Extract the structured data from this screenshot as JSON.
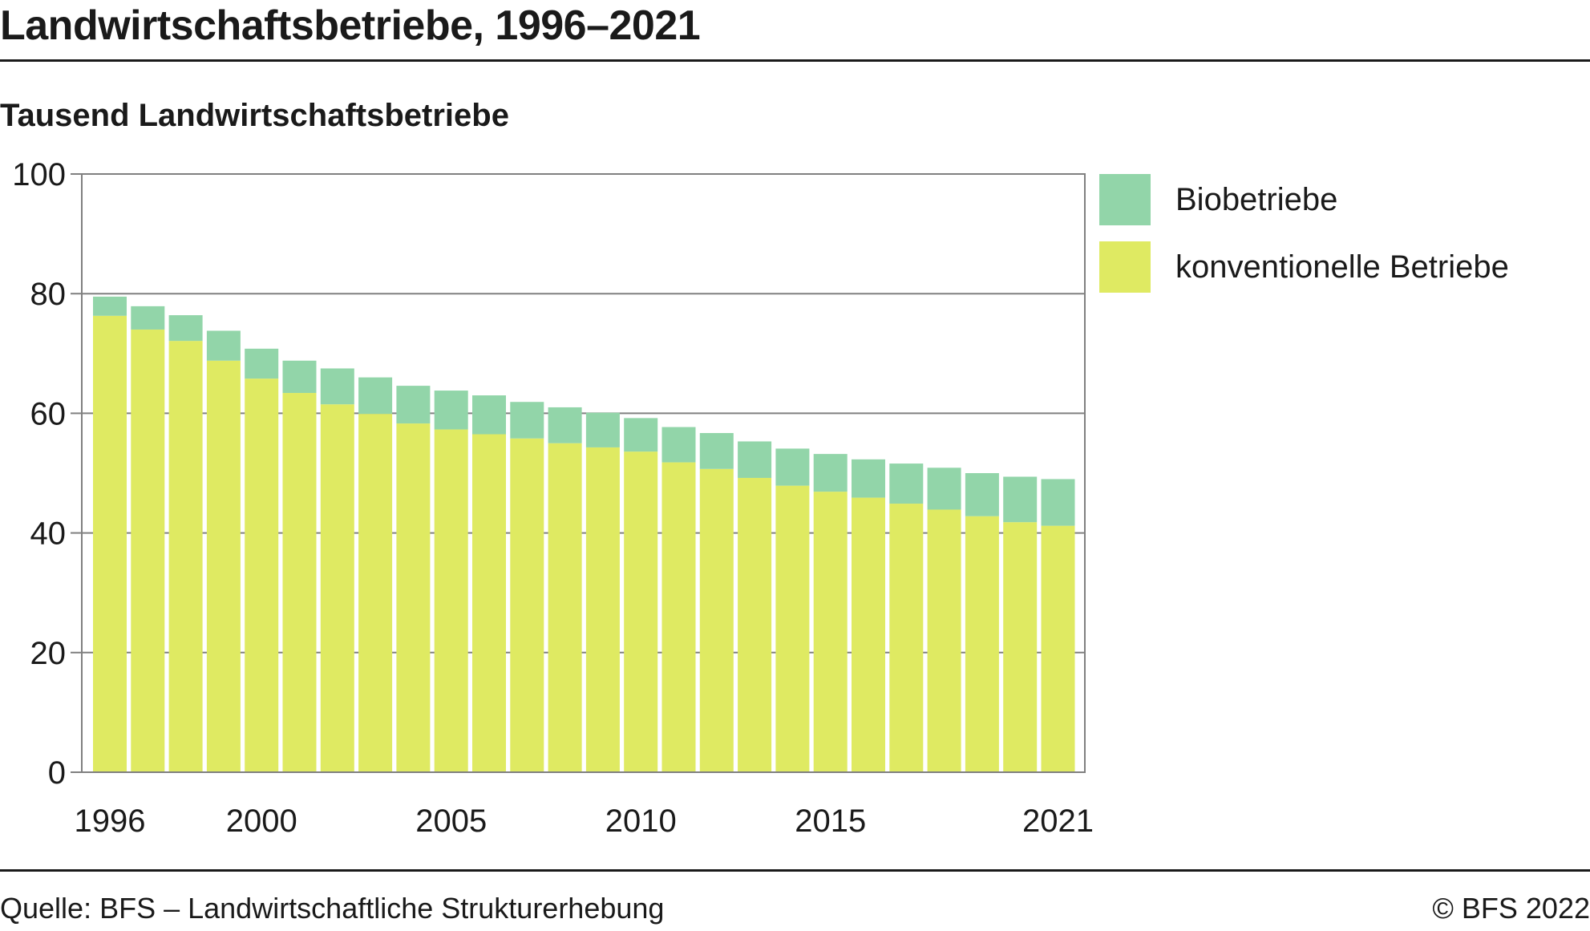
{
  "header": {
    "title": "Landwirtschaftsbetriebe, 1996–2021",
    "subtitle": "Tausend Landwirtschaftsbetriebe"
  },
  "footer": {
    "source": "Quelle: BFS – Landwirtschaftliche Strukturerhebung",
    "copyright": "© BFS 2022"
  },
  "colors": {
    "bio": "#92d5a9",
    "conventional": "#dfea62",
    "grid": "#808080",
    "text": "#1a1a1a"
  },
  "chart_data": {
    "type": "bar",
    "stacked": true,
    "title": "Landwirtschaftsbetriebe, 1996–2021",
    "ylabel": "Tausend Landwirtschaftsbetriebe",
    "xlabel": "",
    "ylim": [
      0,
      100
    ],
    "yticks": [
      0,
      20,
      40,
      60,
      80,
      100
    ],
    "grid": true,
    "legend_position": "right",
    "categories": [
      1996,
      1997,
      1998,
      1999,
      2000,
      2001,
      2002,
      2003,
      2004,
      2005,
      2006,
      2007,
      2008,
      2009,
      2010,
      2011,
      2012,
      2013,
      2014,
      2015,
      2016,
      2017,
      2018,
      2019,
      2020,
      2021
    ],
    "xtick_labels": [
      "1996",
      "2000",
      "2005",
      "2010",
      "2015",
      "2021"
    ],
    "series": [
      {
        "name": "konventionelle Betriebe",
        "color": "#dfea62",
        "values": [
          76.3,
          74.0,
          72.1,
          68.8,
          65.8,
          63.4,
          61.5,
          59.9,
          58.3,
          57.3,
          56.5,
          55.8,
          55.0,
          54.3,
          53.6,
          51.8,
          50.7,
          49.2,
          47.9,
          46.9,
          45.9,
          44.9,
          43.9,
          42.8,
          41.8,
          41.2
        ]
      },
      {
        "name": "Biobetriebe",
        "color": "#92d5a9",
        "values": [
          3.2,
          3.9,
          4.3,
          5.0,
          5.0,
          5.4,
          6.0,
          6.1,
          6.3,
          6.5,
          6.5,
          6.1,
          6.0,
          5.8,
          5.6,
          5.9,
          6.0,
          6.1,
          6.2,
          6.3,
          6.4,
          6.7,
          7.0,
          7.2,
          7.6,
          7.8
        ]
      }
    ]
  }
}
